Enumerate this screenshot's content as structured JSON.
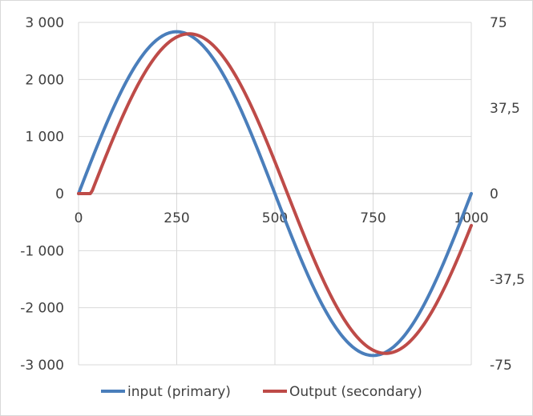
{
  "chart_data": {
    "type": "line",
    "x_range": [
      0,
      1000
    ],
    "x_ticks": [
      0,
      250,
      500,
      750,
      1000
    ],
    "x_tick_labels": [
      "0",
      "250",
      "500",
      "750",
      "1000"
    ],
    "y_left_range": [
      -3000,
      3000
    ],
    "y_left_ticks": [
      3000,
      2000,
      1000,
      0,
      -1000,
      -2000,
      -3000
    ],
    "y_left_tick_labels": [
      "3 000",
      "2 000",
      "1 000",
      "0",
      "-1 000",
      "-2 000",
      "-3 000"
    ],
    "y_right_range": [
      -75,
      75
    ],
    "y_right_ticks": [
      75,
      37.5,
      0,
      -37.5,
      -75
    ],
    "y_right_tick_labels": [
      "75",
      "37,5",
      "0",
      "-37,5",
      "-75"
    ],
    "grid": true,
    "legend_position": "bottom",
    "series": [
      {
        "name": "input (primary)",
        "axis": "left",
        "color": "#4a7ebb",
        "x": [
          0,
          50,
          100,
          150,
          200,
          250,
          300,
          350,
          400,
          450,
          500,
          550,
          600,
          650,
          700,
          750,
          800,
          850,
          900,
          950,
          1000
        ],
        "y": [
          0,
          877,
          1668,
          2295,
          2698,
          2837,
          2698,
          2295,
          1668,
          877,
          0,
          -877,
          -1668,
          -2295,
          -2698,
          -2837,
          -2698,
          -2295,
          -1668,
          -877,
          0
        ]
      },
      {
        "name": "Output (secondary)",
        "axis": "right",
        "color": "#be4b48",
        "x": [
          0,
          25,
          30,
          50,
          100,
          150,
          200,
          250,
          290,
          300,
          350,
          400,
          450,
          500,
          550,
          600,
          650,
          700,
          750,
          790,
          800,
          850,
          900,
          950,
          1000
        ],
        "y": [
          0,
          0,
          1.1,
          9.9,
          28.4,
          43.9,
          55.9,
          66.0,
          70.0,
          69.4,
          64.1,
          54.1,
          38.9,
          21.6,
          1.1,
          -19.5,
          -38.4,
          -54.1,
          -66.0,
          -70.0,
          -69.4,
          -64.1,
          -52.9,
          -38.4,
          -21.6
        ]
      }
    ]
  }
}
